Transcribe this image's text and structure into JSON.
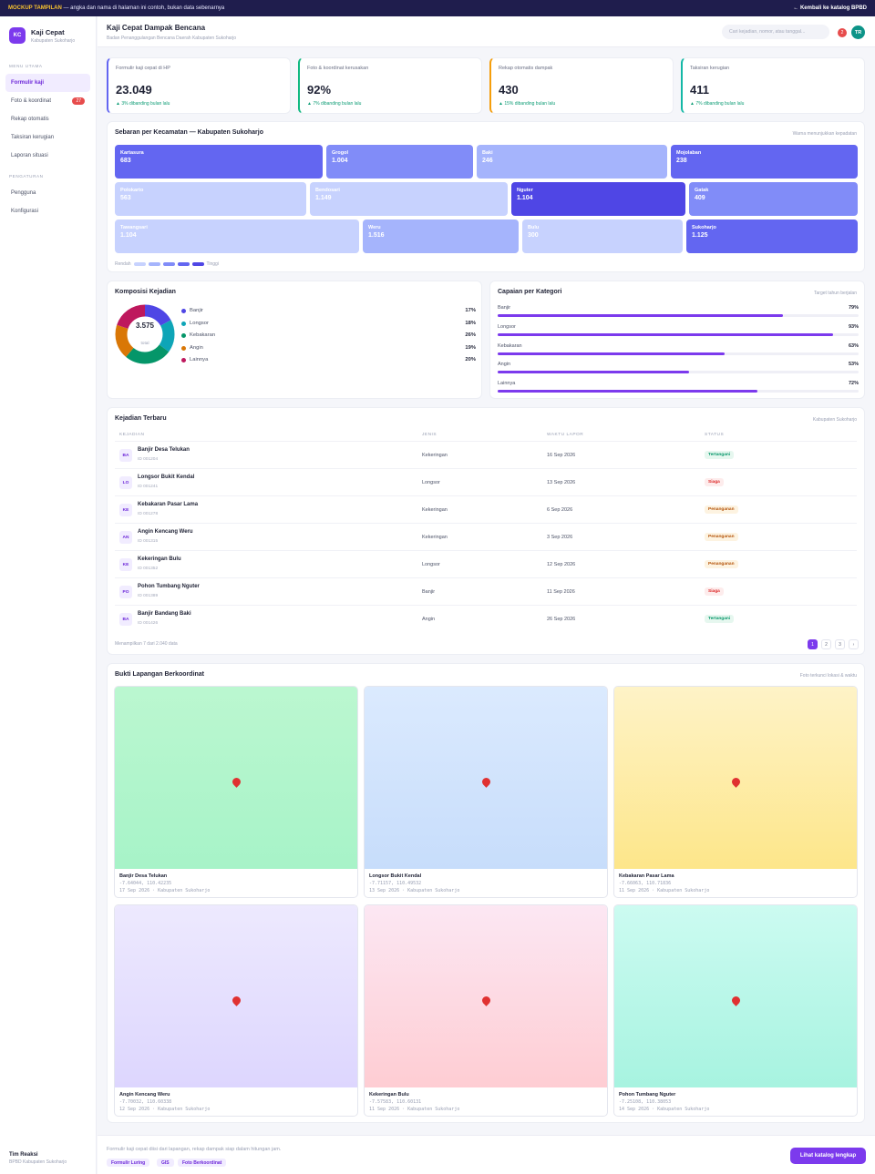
{
  "topbar": {
    "mock_label": "MOCKUP TAMPILAN",
    "mock_text": " — angka dan nama di halaman ini contoh, bukan data sebenarnya",
    "back_link": "← Kembali ke katalog BPBD"
  },
  "brand": {
    "logo": "KC",
    "name": "Kaji Cepat",
    "region": "Kabupaten Sukoharjo"
  },
  "sidebar": {
    "section_main": "MENU UTAMA",
    "main_items": [
      {
        "label": "Formulir kaji",
        "badge": ""
      },
      {
        "label": "Foto & koordinat",
        "badge": "27"
      },
      {
        "label": "Rekap otomatis",
        "badge": ""
      },
      {
        "label": "Taksiran kerugian",
        "badge": ""
      },
      {
        "label": "Laporan situasi",
        "badge": ""
      }
    ],
    "section_settings": "PENGATURAN",
    "settings_items": [
      {
        "label": "Pengguna"
      },
      {
        "label": "Konfigurasi"
      }
    ],
    "footer_team": "Tim Reaksi",
    "footer_org": "BPBD Kabupaten Sukoharjo"
  },
  "header": {
    "title": "Kaji Cepat Dampak Bencana",
    "subtitle": "Badan Penanggulangan Bencana Daerah Kabupaten Sukoharjo",
    "search_placeholder": "Cari kejadian, nomor, atau tanggal...",
    "notif_count": "2",
    "avatar": "TR"
  },
  "kpis": [
    {
      "label": "Formulir kaji cepat di HP",
      "value": "23.049",
      "delta": "▲ 3% dibanding bulan lalu",
      "accent": "#6366f1"
    },
    {
      "label": "Foto & koordinat kerusakan",
      "value": "92%",
      "delta": "▲ 7% dibanding bulan lalu",
      "accent": "#10b981"
    },
    {
      "label": "Rekap otomatis dampak",
      "value": "430",
      "delta": "▲ 15% dibanding bulan lalu",
      "accent": "#f59e0b"
    },
    {
      "label": "Taksiran kerugian",
      "value": "411",
      "delta": "▲ 7% dibanding bulan lalu",
      "accent": "#14b8a6"
    }
  ],
  "treemap": {
    "title": "Sebaran per Kecamatan — Kabupaten Sukoharjo",
    "note": "Warna menunjukkan kepadatan",
    "cells": [
      {
        "name": "Kartasura",
        "count": "683",
        "color": "#6366f1"
      },
      {
        "name": "Grogol",
        "count": "1.004",
        "color": "#818cf8"
      },
      {
        "name": "Baki",
        "count": "246",
        "color": "#a5b4fc"
      },
      {
        "name": "Mojolaban",
        "count": "238",
        "color": "#6366f1"
      },
      {
        "name": "Polokarto",
        "count": "563",
        "color": "#c7d2fe"
      },
      {
        "name": "Bendosari",
        "count": "1.149",
        "color": "#c7d2fe"
      },
      {
        "name": "Nguter",
        "count": "1.104",
        "color": "#4f46e5"
      },
      {
        "name": "Gatak",
        "count": "409",
        "color": "#818cf8"
      },
      {
        "name": "Tawangsari",
        "count": "1.104",
        "color": "#c7d2fe"
      },
      {
        "name": "Weru",
        "count": "1.516",
        "color": "#a5b4fc"
      },
      {
        "name": "Bulu",
        "count": "300",
        "color": "#c7d2fe"
      },
      {
        "name": "Sukoharjo",
        "count": "1.125",
        "color": "#6366f1"
      }
    ],
    "legend_low": "Rendah",
    "legend_high": "Tinggi",
    "legend_colors": [
      "#c7d2fe",
      "#a5b4fc",
      "#818cf8",
      "#6366f1",
      "#4f46e5"
    ]
  },
  "composition": {
    "title": "Komposisi Kejadian",
    "total": "3.575",
    "total_label": "total",
    "items": [
      {
        "label": "Banjir",
        "pct": "17%",
        "value": 17,
        "color": "#4f46e5"
      },
      {
        "label": "Longsor",
        "pct": "18%",
        "value": 18,
        "color": "#0ea5b7"
      },
      {
        "label": "Kebakaran",
        "pct": "26%",
        "value": 26,
        "color": "#059669"
      },
      {
        "label": "Angin",
        "pct": "19%",
        "value": 19,
        "color": "#d97706"
      },
      {
        "label": "Lainnya",
        "pct": "20%",
        "value": 20,
        "color": "#be185d"
      }
    ]
  },
  "achievement": {
    "title": "Capaian per Kategori",
    "note": "Target tahun berjalan",
    "items": [
      {
        "label": "Banjir",
        "pct": "79%",
        "value": 0.79
      },
      {
        "label": "Longsor",
        "pct": "93%",
        "value": 0.93
      },
      {
        "label": "Kebakaran",
        "pct": "63%",
        "value": 0.63
      },
      {
        "label": "Angin",
        "pct": "53%",
        "value": 0.53
      },
      {
        "label": "Lainnya",
        "pct": "72%",
        "value": 0.72
      }
    ]
  },
  "incidents": {
    "title": "Kejadian Terbaru",
    "note": "Kabupaten Sukoharjo",
    "columns": [
      "KEJADIAN",
      "JENIS",
      "WAKTU LAPOR",
      "STATUS"
    ],
    "rows": [
      {
        "icon": "BA",
        "name": "Banjir Desa Telukan",
        "id": "ID 001204",
        "type": "Kekeringan",
        "time": "16 Sep 2026",
        "status": "Tertangani",
        "status_color": "#059669",
        "status_bg": "#e6f7ef"
      },
      {
        "icon": "LO",
        "name": "Longsor Bukit Kendal",
        "id": "ID 001241",
        "type": "Longsor",
        "time": "13 Sep 2026",
        "status": "Siaga",
        "status_color": "#dc2626",
        "status_bg": "#fdecec"
      },
      {
        "icon": "KE",
        "name": "Kebakaran Pasar Lama",
        "id": "ID 001278",
        "type": "Kekeringan",
        "time": "6 Sep 2026",
        "status": "Penanganan",
        "status_color": "#b45309",
        "status_bg": "#fdf3e1"
      },
      {
        "icon": "AN",
        "name": "Angin Kencang Weru",
        "id": "ID 001315",
        "type": "Kekeringan",
        "time": "3 Sep 2026",
        "status": "Penanganan",
        "status_color": "#b45309",
        "status_bg": "#fdf3e1"
      },
      {
        "icon": "KE",
        "name": "Kekeringan Bulu",
        "id": "ID 001352",
        "type": "Longsor",
        "time": "12 Sep 2026",
        "status": "Penanganan",
        "status_color": "#b45309",
        "status_bg": "#fdf3e1"
      },
      {
        "icon": "PO",
        "name": "Pohon Tumbang Nguter",
        "id": "ID 001389",
        "type": "Banjir",
        "time": "11 Sep 2026",
        "status": "Siaga",
        "status_color": "#dc2626",
        "status_bg": "#fdecec"
      },
      {
        "icon": "BA",
        "name": "Banjir Bandang Baki",
        "id": "ID 001426",
        "type": "Angin",
        "time": "26 Sep 2026",
        "status": "Tertangani",
        "status_color": "#059669",
        "status_bg": "#e6f7ef"
      }
    ],
    "summary": "Menampilkan 7 dari 2.040 data",
    "pages": [
      "1",
      "2",
      "3",
      "›"
    ]
  },
  "evidence": {
    "title": "Bukti Lapangan Berkoordinat",
    "note": "Foto terkunci lokasi & waktu",
    "photos": [
      {
        "title": "Banjir Desa Telukan",
        "coords": "-7.64044, 110.42235",
        "meta": "17 Sep 2026 · Kabupaten Sukoharjo",
        "from": "#bbf7d0",
        "to": "#a7f3c8"
      },
      {
        "title": "Longsor Bukit Kendal",
        "coords": "-7.71157, 110.49532",
        "meta": "13 Sep 2026 · Kabupaten Sukoharjo",
        "from": "#dbeafe",
        "to": "#c7ddfb"
      },
      {
        "title": "Kebakaran Pasar Lama",
        "coords": "-7.66063, 110.71836",
        "meta": "11 Sep 2026 · Kabupaten Sukoharjo",
        "from": "#fef3c7",
        "to": "#fde68a"
      },
      {
        "title": "Angin Kencang Weru",
        "coords": "-7.70032, 110.60338",
        "meta": "12 Sep 2026 · Kabupaten Sukoharjo",
        "from": "#ede9fe",
        "to": "#ddd6fe"
      },
      {
        "title": "Kekeringan Bulu",
        "coords": "-7.57583, 110.60131",
        "meta": "11 Sep 2026 · Kabupaten Sukoharjo",
        "from": "#fce7f3",
        "to": "#fecdd3"
      },
      {
        "title": "Pohon Tumbang Nguter",
        "coords": "-7.25108, 110.38053",
        "meta": "14 Sep 2026 · Kabupaten Sukoharjo",
        "from": "#ccfbf1",
        "to": "#a7f3e0"
      }
    ]
  },
  "footer": {
    "text": "Formulir kaji cepat diisi dari lapangan, rekap dampak siap dalam hitungan jam.",
    "tags": [
      "Formulir Luring",
      "GIS",
      "Foto Berkoordinat"
    ],
    "button": "Lihat katalog lengkap"
  }
}
